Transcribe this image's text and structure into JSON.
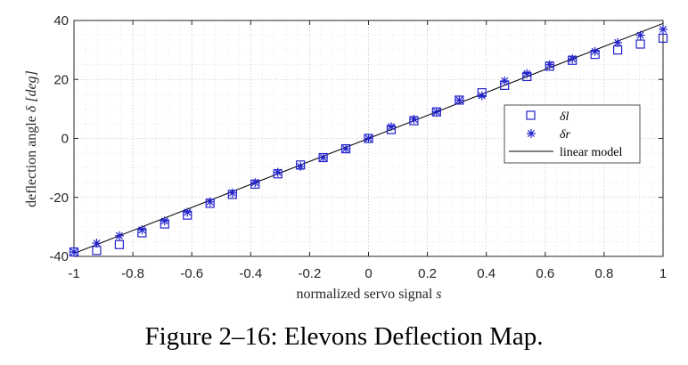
{
  "caption": "Figure 2–16: Elevons Deflection Map.",
  "chart_data": {
    "type": "scatter",
    "xlabel_prefix": "normalized servo signal ",
    "xlabel_var": "s",
    "ylabel_prefix": "deflection angle ",
    "ylabel_var": "δ [deg]",
    "xlim": [
      -1,
      1
    ],
    "ylim": [
      -40,
      40
    ],
    "xticks": [
      "-1",
      "-0.8",
      "-0.6",
      "-0.4",
      "-0.2",
      "0",
      "0.2",
      "0.4",
      "0.6",
      "0.8",
      "1"
    ],
    "yticks": [
      "40",
      "20",
      "0",
      "-20",
      "-40"
    ],
    "grid": true,
    "legend_position": "right",
    "x": [
      -1,
      -0.923,
      -0.846,
      -0.769,
      -0.692,
      -0.615,
      -0.538,
      -0.462,
      -0.385,
      -0.308,
      -0.231,
      -0.154,
      -0.077,
      0,
      0.077,
      0.154,
      0.231,
      0.308,
      0.385,
      0.462,
      0.538,
      0.615,
      0.692,
      0.769,
      0.846,
      0.923,
      1
    ],
    "series": [
      {
        "name": "δl",
        "marker": "square",
        "color": "#2222cc",
        "values": [
          -38.5,
          -38.0,
          -36.0,
          -32.0,
          -29.0,
          -26.0,
          -22.0,
          -19.0,
          -15.5,
          -12.0,
          -9.0,
          -6.5,
          -3.5,
          0.0,
          3.0,
          6.0,
          9.0,
          13.0,
          15.5,
          18.0,
          21.0,
          24.5,
          26.5,
          28.5,
          30.0,
          32.0,
          34.0
        ]
      },
      {
        "name": "δr",
        "marker": "asterisk",
        "color": "#2222cc",
        "values": [
          -38.5,
          -35.5,
          -33.0,
          -31.0,
          -28.0,
          -25.0,
          -21.5,
          -18.5,
          -15.0,
          -11.5,
          -9.5,
          -6.5,
          -3.5,
          0.0,
          4.0,
          6.5,
          9.0,
          13.0,
          14.5,
          19.5,
          22.0,
          25.0,
          27.0,
          29.5,
          32.5,
          35.0,
          37.0
        ]
      },
      {
        "name": "linear model",
        "type": "line",
        "color": "#000000",
        "x": [
          -1,
          1
        ],
        "values": [
          -39,
          39
        ]
      }
    ]
  }
}
